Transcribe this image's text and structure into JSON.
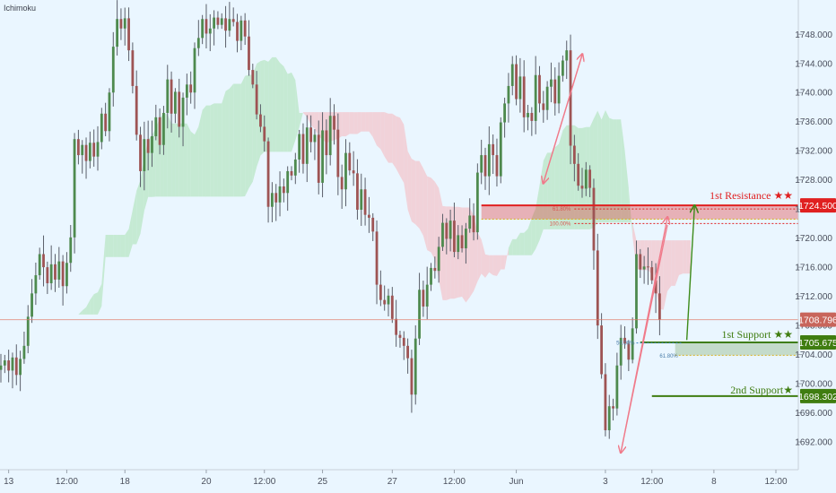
{
  "indicator": "Ichimoku",
  "colors": {
    "background": "#eaf6ff",
    "up_candle": "#4e8a4e",
    "down_candle": "#9e5454",
    "wick": "#5a5f6a",
    "cloud_bull": "#b8e6c4",
    "cloud_bear": "#f3c6cc",
    "resistance": "#e02020",
    "support": "#3f7d10",
    "arrow_pink": "#f07a8a",
    "arrow_green": "#3d8b1a",
    "current_price": "#e07a6a",
    "current_price_tag": "#c8655b"
  },
  "chart_data": {
    "type": "candlestick",
    "y_axis": {
      "ylim": [
        1688.8,
        1750.3
      ],
      "ticks": [
        1692,
        1696,
        1700,
        1704,
        1708,
        1712,
        1716,
        1720,
        1724,
        1728,
        1732,
        1736,
        1740,
        1744,
        1748
      ],
      "tick_labels": [
        "1692.000",
        "1696.000",
        "1700.000",
        "1704.000",
        "1708.000",
        "1712.000",
        "1716.000",
        "1720.000",
        "1724.000",
        "1728.000",
        "1732.000",
        "1736.000",
        "1740.000",
        "1744.000",
        "1748.000"
      ]
    },
    "x_axis": {
      "ticks": [
        {
          "label": "13",
          "index": 2
        },
        {
          "label": "12:00",
          "index": 17
        },
        {
          "label": "18",
          "index": 32
        },
        {
          "label": "20",
          "index": 53
        },
        {
          "label": "12:00",
          "index": 68
        },
        {
          "label": "25",
          "index": 83
        },
        {
          "label": "27",
          "index": 101
        },
        {
          "label": "12:00",
          "index": 117
        },
        {
          "label": "Jun",
          "index": 133
        },
        {
          "label": "3",
          "index": 156
        },
        {
          "label": "12:00",
          "index": 168
        },
        {
          "label": "8",
          "index": 184
        },
        {
          "label": "12:00",
          "index": 200
        }
      ]
    },
    "closes": [
      1702.5,
      1703.2,
      1701.8,
      1703.6,
      1701.2,
      1703.4,
      1705.2,
      1709.2,
      1712.4,
      1714.9,
      1717.8,
      1716.0,
      1713.8,
      1716.4,
      1714.3,
      1716.8,
      1713.4,
      1716.6,
      1720.1,
      1733.6,
      1731.4,
      1732.8,
      1730.6,
      1733.1,
      1731.2,
      1733.2,
      1737.1,
      1734.7,
      1740.0,
      1746.3,
      1750.1,
      1748.8,
      1750.2,
      1745.8,
      1740.9,
      1734.2,
      1729.2,
      1733.6,
      1731.7,
      1734.0,
      1736.6,
      1732.8,
      1737.2,
      1741.8,
      1737.1,
      1740.1,
      1735.3,
      1739.3,
      1741.1,
      1740.0,
      1746.1,
      1747.5,
      1750.1,
      1748.1,
      1748.8,
      1750.3,
      1749.3,
      1750.2,
      1748.5,
      1750.1,
      1749.7,
      1747.1,
      1749.9,
      1747.7,
      1743.1,
      1741.1,
      1737.0,
      1735.3,
      1733.3,
      1724.3,
      1726.2,
      1724.9,
      1727.1,
      1726.2,
      1729.2,
      1728.6,
      1730.8,
      1734.3,
      1730.2,
      1735.2,
      1733.2,
      1734.2,
      1727.6,
      1734.8,
      1731.4,
      1736.8,
      1734.9,
      1728.4,
      1726.7,
      1731.7,
      1729.3,
      1728.9,
      1723.9,
      1726.7,
      1723.2,
      1722.8,
      1720.9,
      1713.6,
      1711.5,
      1710.9,
      1712.1,
      1708.9,
      1706.7,
      1706.3,
      1705.2,
      1703.5,
      1698.5,
      1706.2,
      1712.9,
      1710.6,
      1713.6,
      1715.9,
      1715.5,
      1718.8,
      1722.1,
      1719.9,
      1722.4,
      1718.1,
      1720.4,
      1718.6,
      1721.3,
      1723.1,
      1720.8,
      1729.0,
      1731.4,
      1728.5,
      1732.9,
      1731.4,
      1728.5,
      1735.9,
      1738.5,
      1740.9,
      1743.9,
      1739.1,
      1742.2,
      1736.6,
      1737.2,
      1736.1,
      1742.4,
      1738.5,
      1737.6,
      1740.8,
      1741.8,
      1738.5,
      1742.3,
      1744.4,
      1745.8,
      1732.7,
      1730.2,
      1727.2,
      1726.8,
      1729.4,
      1726.9,
      1718.3,
      1708.0,
      1701.3,
      1693.6,
      1696.9,
      1696.6,
      1702.5,
      1706.3,
      1705.5,
      1703.3,
      1707.6,
      1717.8,
      1715.7,
      1716.1,
      1716.0,
      1714.2,
      1712.4,
      1708.8
    ],
    "current_price": 1708.796,
    "annotations": [
      {
        "label": "1st Resistance ★★",
        "value": 1724.5,
        "price_tag": "1724.500"
      },
      {
        "label": "1st Support ★★",
        "value": 1705.675,
        "price_tag": "1705.675"
      },
      {
        "label": "2nd Support★",
        "value": 1698.302,
        "price_tag": "1698.302"
      }
    ],
    "current_price_tag": "1708.796",
    "fib_labels": [
      {
        "label": "61.80%",
        "value": 1724.0
      },
      {
        "label": "100.00%",
        "value": 1722.0
      },
      {
        "label": "50.00%",
        "value": 1705.6
      },
      {
        "label": "61.80%",
        "value": 1703.8
      }
    ],
    "zones": [
      {
        "name": "resistance",
        "from": 1722.6,
        "to": 1724.5,
        "start_index": 124
      },
      {
        "name": "support",
        "from": 1703.9,
        "to": 1705.675,
        "start_index": 174
      }
    ]
  }
}
